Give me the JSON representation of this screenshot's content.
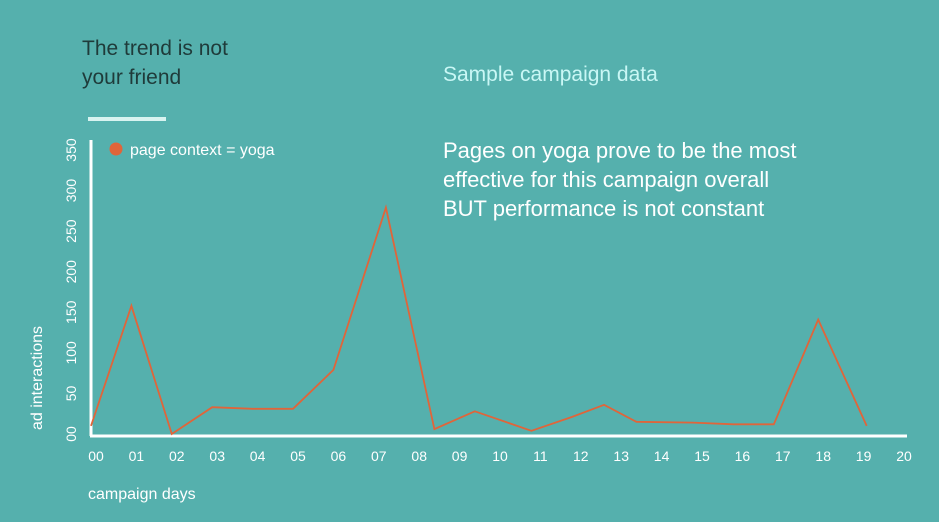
{
  "slide": {
    "title": "The trend is not\nyour friend",
    "subtitle": "Sample campaign data",
    "insight": "Pages on yoga prove to be the most\neffective for this campaign overall\nBUT performance is not constant"
  },
  "colors": {
    "background": "#55b0ad",
    "line": "#e0653a",
    "axis": "#ffffff",
    "title": "#1f3b3a",
    "subtitle": "#c9f7f5"
  },
  "chart_data": {
    "type": "line",
    "xlabel": "campaign days",
    "ylabel": "ad interactions",
    "x_ticks": [
      "00",
      "01",
      "02",
      "03",
      "04",
      "05",
      "06",
      "07",
      "08",
      "09",
      "10",
      "11",
      "12",
      "13",
      "14",
      "15",
      "16",
      "17",
      "18",
      "19",
      "20"
    ],
    "y_ticks": [
      "00",
      "50",
      "100",
      "150",
      "200",
      "250",
      "300",
      "350"
    ],
    "ylim": [
      0,
      350
    ],
    "xlim": [
      0,
      20
    ],
    "grid": false,
    "legend": {
      "position": "top-left"
    },
    "series": [
      {
        "name": "page context = yoga",
        "color": "#e0653a",
        "x": [
          0,
          1,
          2,
          3,
          4,
          5,
          6,
          7.3,
          8.5,
          9.5,
          10.9,
          11.9,
          12.7,
          13.5,
          14.9,
          15.9,
          16.9,
          18,
          19.2
        ],
        "y": [
          10,
          158,
          0,
          33,
          31,
          31,
          79,
          279,
          6,
          28,
          4,
          21,
          36,
          15,
          14,
          12,
          12,
          141,
          10
        ]
      }
    ]
  }
}
